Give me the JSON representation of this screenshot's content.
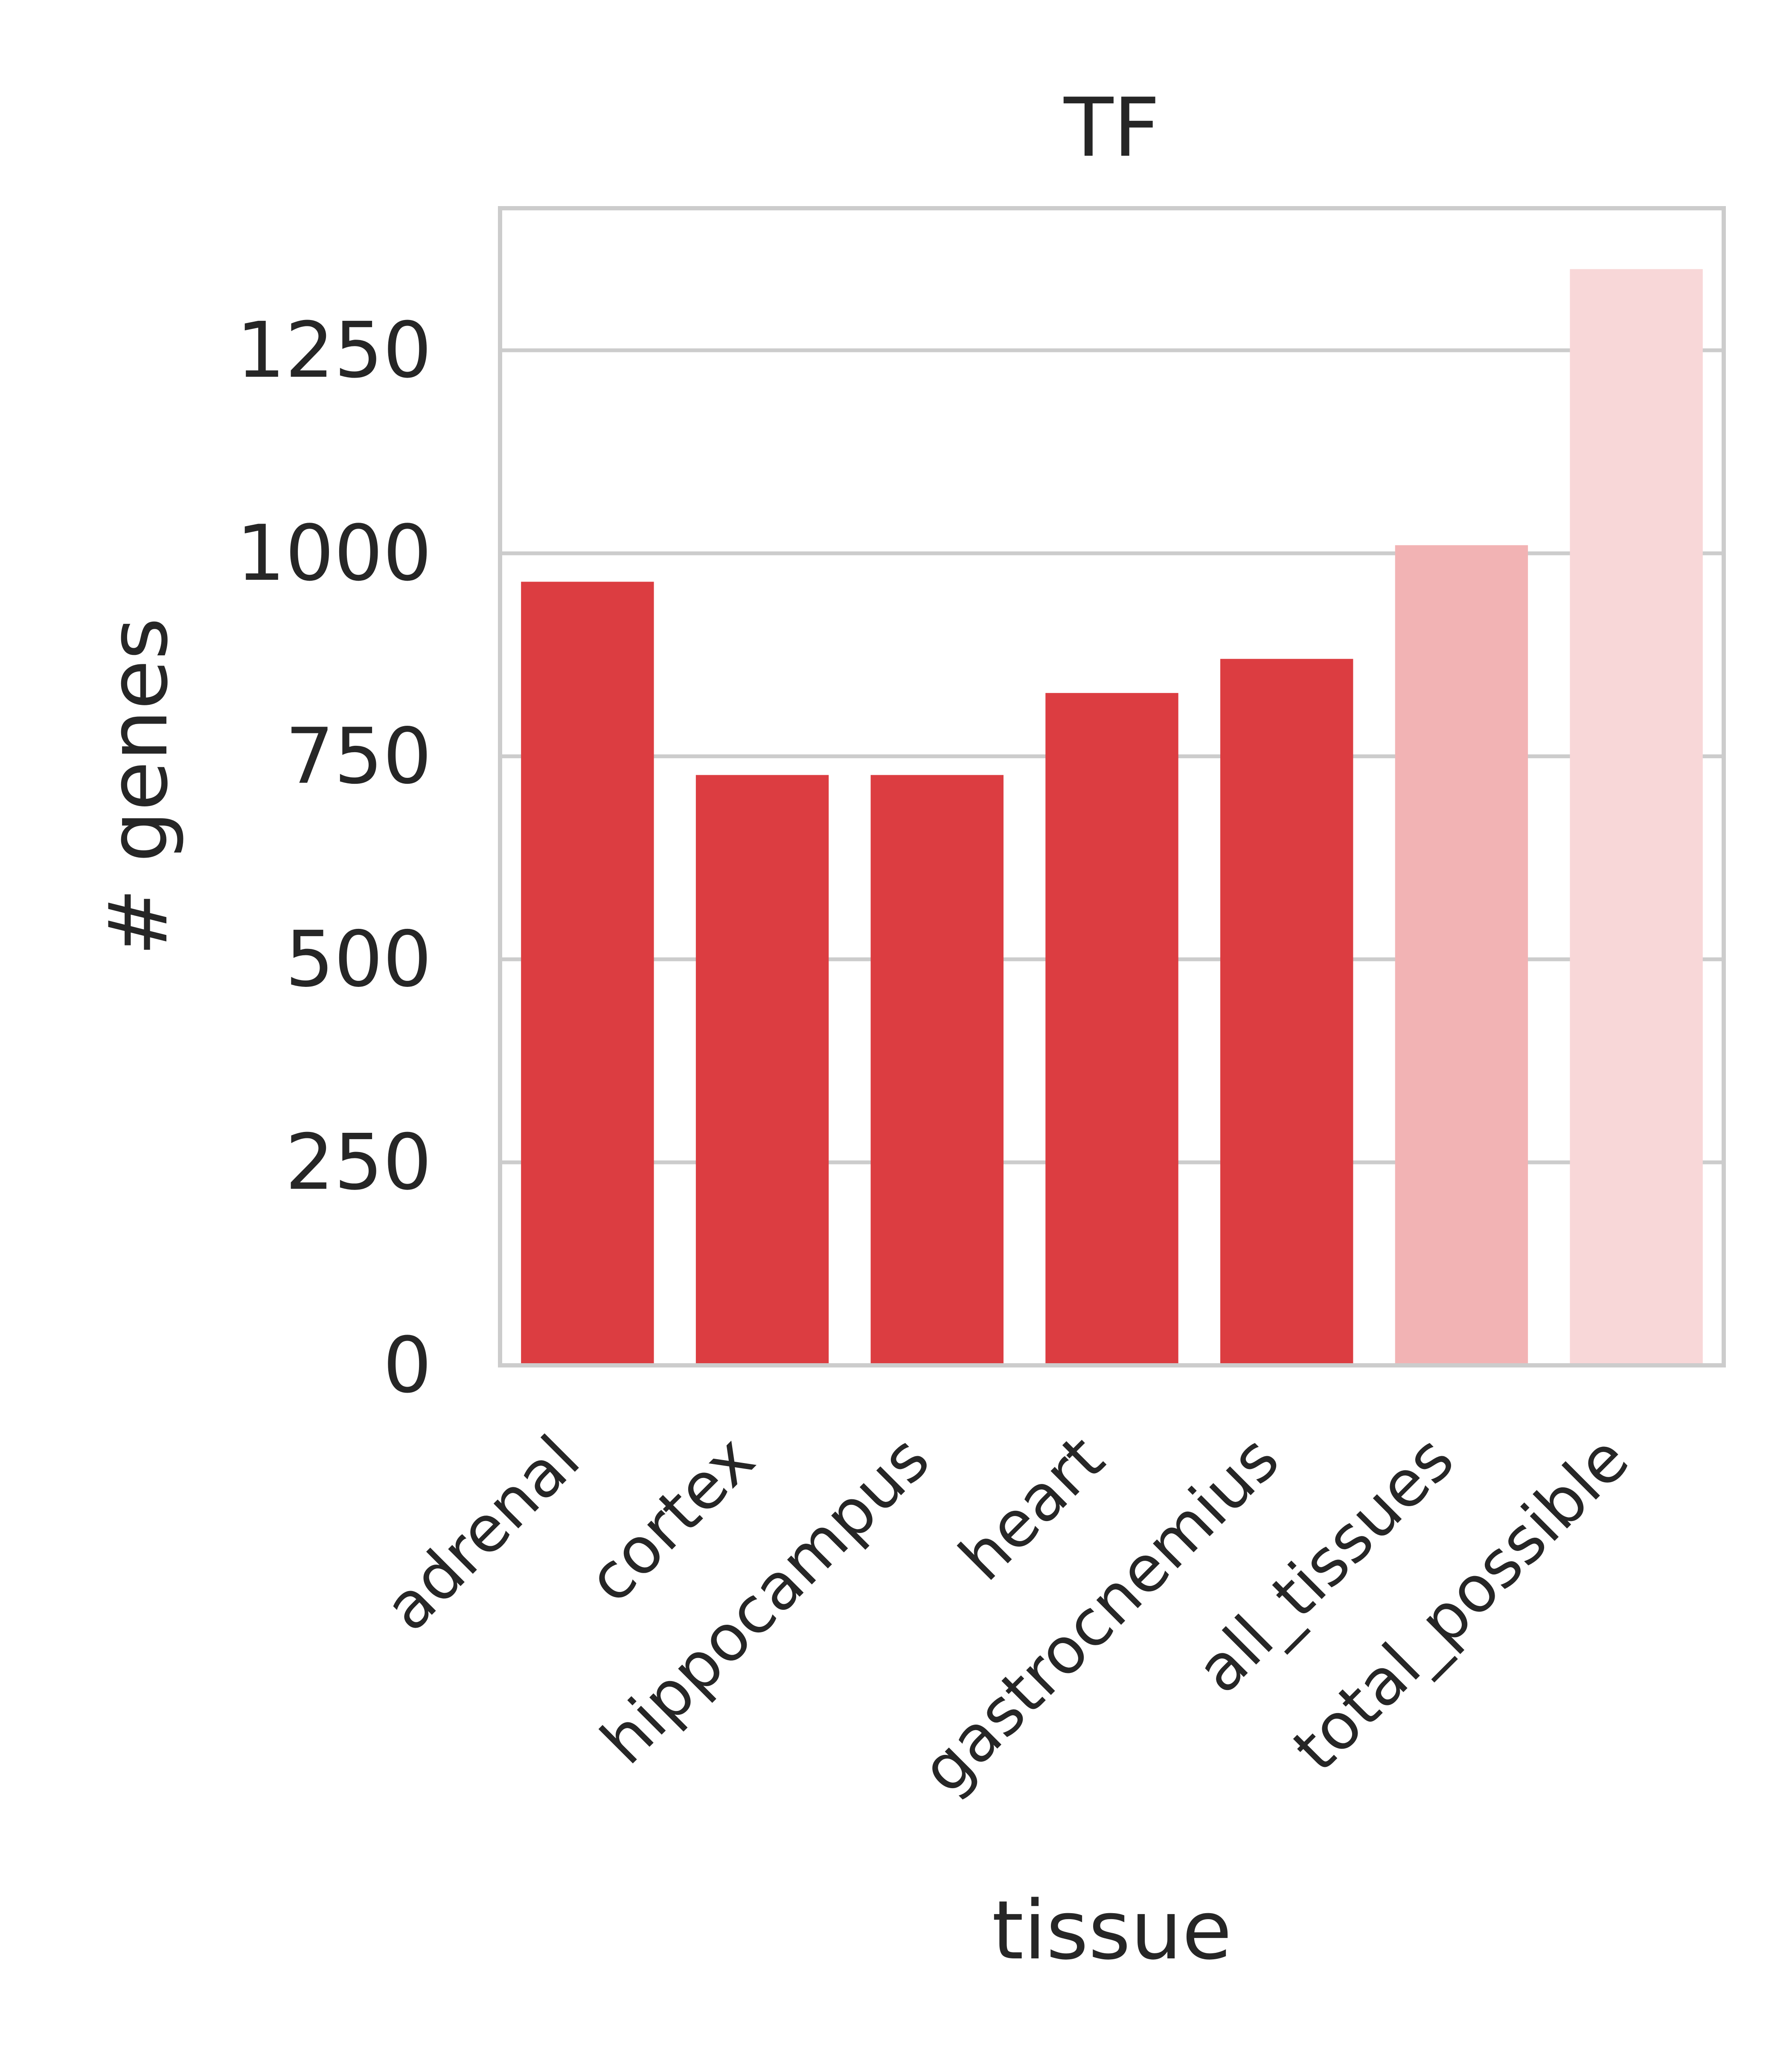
{
  "chart_data": {
    "type": "bar",
    "title": "TF",
    "xlabel": "tissue",
    "ylabel": "# genes",
    "categories": [
      "adrenal",
      "cortex",
      "hippocampus",
      "heart",
      "gastrocnemius",
      "all_tissues",
      "total_possible"
    ],
    "values": [
      965,
      727,
      727,
      828,
      870,
      1010,
      1350
    ],
    "colors": [
      "#dc3d41",
      "#dc3d41",
      "#dc3d41",
      "#dc3d41",
      "#dc3d41",
      "#f2b3b4",
      "#f8d7d8"
    ],
    "ylim": [
      0,
      1425
    ],
    "yticks": [
      0,
      250,
      500,
      750,
      1000,
      1250
    ],
    "grid": true,
    "gridcolor": "#cccccc",
    "legend": "none"
  }
}
